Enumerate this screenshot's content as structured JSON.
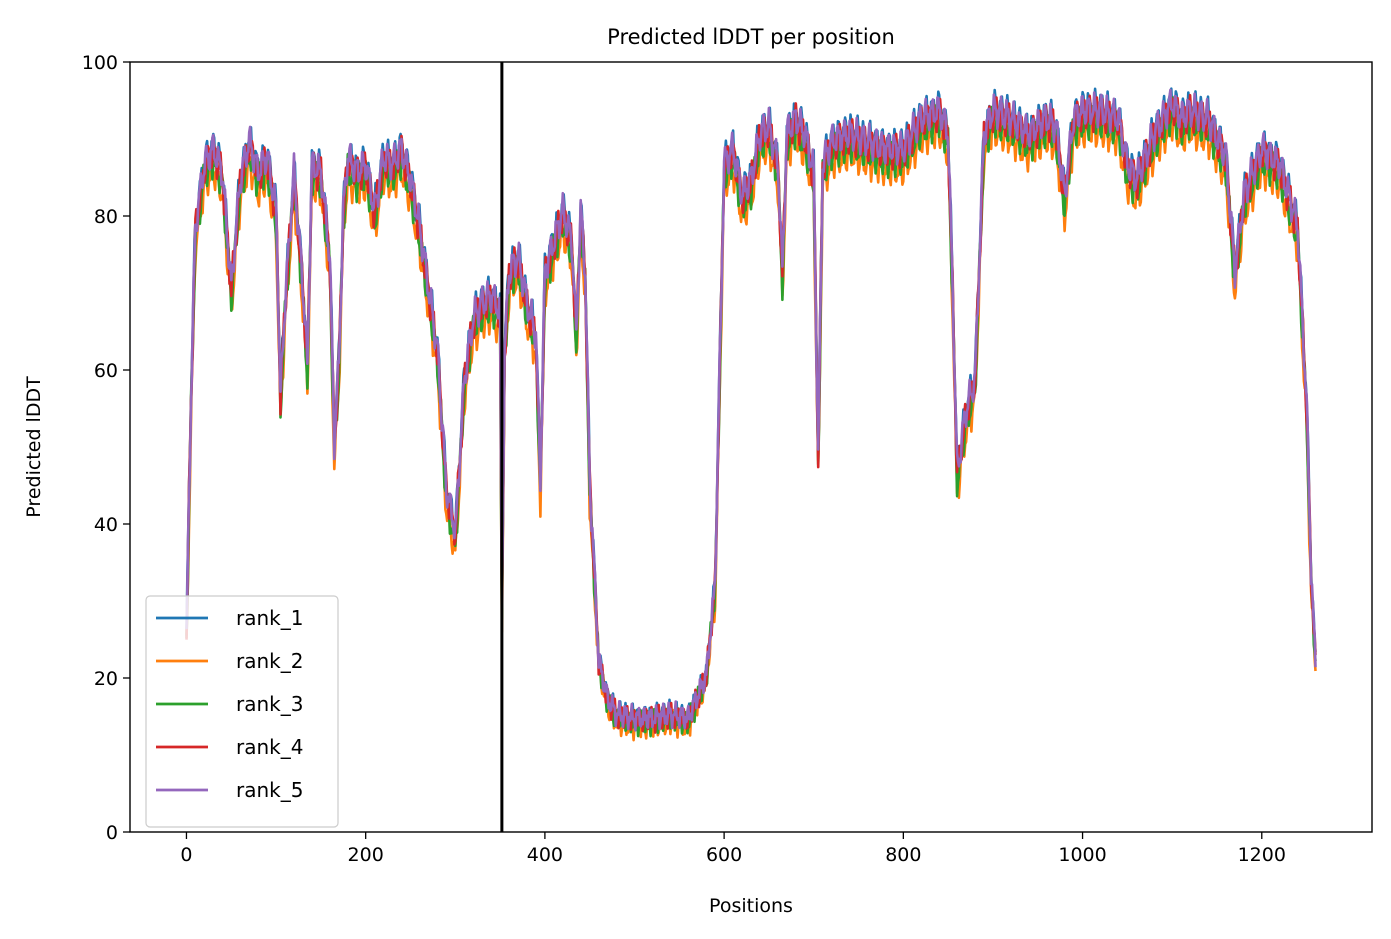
{
  "chart_data": {
    "type": "line",
    "title": "Predicted lDDT per position",
    "xlabel": "Positions",
    "ylabel": "Predicted lDDT",
    "xlim": [
      -63,
      1323
    ],
    "ylim": [
      0,
      100
    ],
    "xticks": [
      0,
      200,
      400,
      600,
      800,
      1000,
      1200
    ],
    "yticks": [
      0,
      20,
      40,
      60,
      80,
      100
    ],
    "grid": false,
    "legend_position": "lower left",
    "vline_x": 352,
    "vline_color": "#000000",
    "knots": {
      "x": [
        0,
        5,
        10,
        20,
        30,
        40,
        50,
        60,
        70,
        80,
        90,
        100,
        105,
        110,
        120,
        130,
        135,
        140,
        150,
        160,
        165,
        170,
        175,
        180,
        190,
        200,
        210,
        220,
        230,
        240,
        250,
        260,
        270,
        280,
        290,
        300,
        310,
        320,
        330,
        340,
        350,
        352,
        355,
        360,
        370,
        380,
        390,
        395,
        400,
        410,
        420,
        430,
        435,
        440,
        445,
        450,
        460,
        470,
        480,
        500,
        520,
        540,
        560,
        580,
        590,
        600,
        610,
        620,
        630,
        640,
        650,
        660,
        665,
        670,
        680,
        690,
        700,
        705,
        710,
        720,
        740,
        760,
        780,
        800,
        820,
        840,
        850,
        855,
        860,
        870,
        880,
        890,
        900,
        920,
        940,
        960,
        970,
        980,
        990,
        1000,
        1020,
        1040,
        1050,
        1060,
        1080,
        1100,
        1110,
        1120,
        1140,
        1160,
        1170,
        1180,
        1200,
        1220,
        1230,
        1240,
        1250,
        1255,
        1260
      ],
      "base": [
        25,
        55,
        78,
        86,
        88,
        85,
        70,
        84,
        89,
        85,
        87,
        80,
        56,
        68,
        85,
        70,
        60,
        86,
        85,
        74,
        50,
        60,
        80,
        87,
        85,
        86,
        80,
        87,
        86,
        88,
        84,
        78,
        70,
        62,
        44,
        38,
        58,
        66,
        68,
        69,
        67,
        28,
        62,
        72,
        74,
        68,
        64,
        45,
        72,
        76,
        80,
        76,
        64,
        80,
        72,
        45,
        22,
        17,
        15,
        14.5,
        14.5,
        15,
        14.5,
        20,
        32,
        86,
        88,
        82,
        84,
        90,
        91,
        86,
        72,
        90,
        92,
        90,
        85,
        48,
        86,
        89,
        90,
        89,
        88,
        88,
        92,
        93,
        90,
        70,
        46,
        54,
        58,
        90,
        93,
        92,
        90,
        92,
        91,
        82,
        92,
        93,
        93,
        92,
        86,
        84,
        90,
        94,
        92,
        93,
        92,
        87,
        72,
        82,
        88,
        86,
        82,
        78,
        55,
        33,
        22
      ]
    },
    "series": [
      {
        "name": "rank_1",
        "color": "#1f77b4",
        "offset": 1.2
      },
      {
        "name": "rank_2",
        "color": "#ff7f0e",
        "offset": -2.0
      },
      {
        "name": "rank_3",
        "color": "#2ca02c",
        "offset": -0.8
      },
      {
        "name": "rank_4",
        "color": "#d62728",
        "offset": 0.3
      },
      {
        "name": "rank_5",
        "color": "#9467bd",
        "offset": 0.8
      }
    ]
  }
}
